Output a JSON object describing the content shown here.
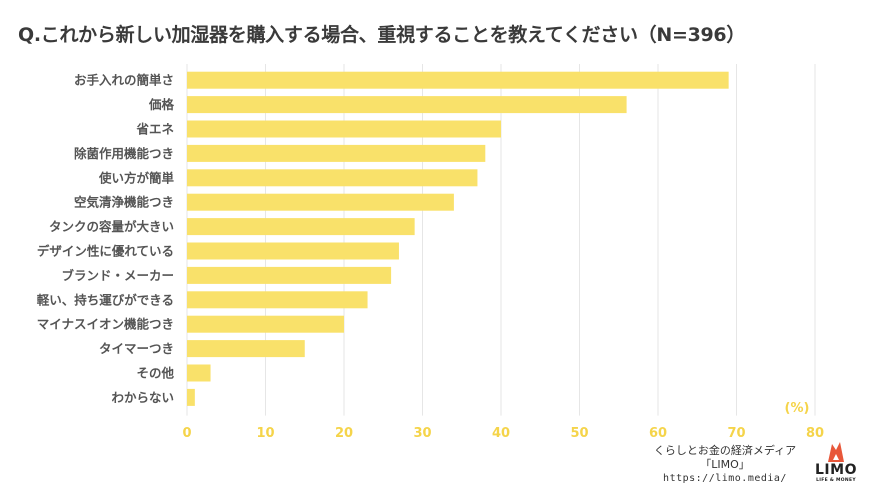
{
  "title": "Q.これから新しい加湿器を購入する場合、重視することを教えてください（N=396）",
  "chart_data": {
    "type": "bar",
    "orientation": "horizontal",
    "categories": [
      "お手入れの簡単さ",
      "価格",
      "省エネ",
      "除菌作用機能つき",
      "使い方が簡単",
      "空気清浄機能つき",
      "タンクの容量が大きい",
      "デザイン性に優れている",
      "ブランド・メーカー",
      "軽い、持ち運びができる",
      "マイナスイオン機能つき",
      "タイマーつき",
      "その他",
      "わからない"
    ],
    "values": [
      69,
      56,
      40,
      38,
      37,
      34,
      29,
      27,
      26,
      23,
      20,
      15,
      3,
      1
    ],
    "xlabel": "(%)",
    "xlim": [
      0,
      80
    ],
    "xticks": [
      "0",
      "10",
      "20",
      "30",
      "40",
      "50",
      "60",
      "70",
      "80"
    ],
    "grid": true,
    "bar_color": "#f9e16a",
    "tick_color": "#f5d44a"
  },
  "footer": {
    "tagline": "くらしとお金の経済メディア",
    "brand": "「LIMO」",
    "url": "https://limo.media/"
  },
  "logo": {
    "word": "LIMO",
    "sub": "LIFE & MONEY",
    "icon": "fox-icon",
    "color": "#e8573a"
  }
}
